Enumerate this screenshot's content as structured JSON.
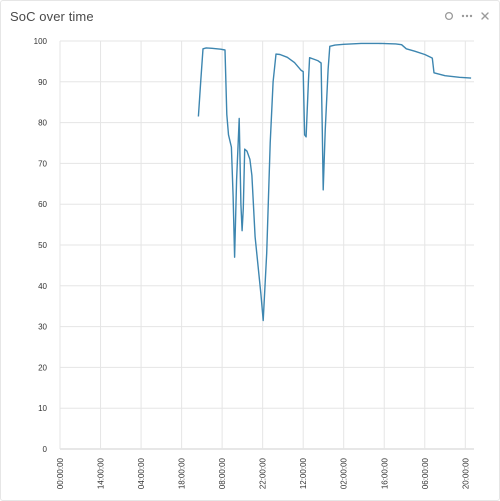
{
  "widget": {
    "title": "SoC over time",
    "controls": [
      {
        "name": "settings-icon"
      },
      {
        "name": "more-icon"
      },
      {
        "name": "close-icon"
      }
    ]
  },
  "chart_data": {
    "type": "line",
    "title": "SoC over time",
    "xlabel": "",
    "ylabel": "",
    "ylim": [
      0,
      100
    ],
    "y_ticks": [
      0,
      10,
      20,
      30,
      40,
      50,
      60,
      70,
      80,
      90,
      100
    ],
    "x_tick_labels": [
      "00:00:00",
      "14:00:00",
      "04:00:00",
      "18:00:00",
      "08:00:00",
      "22:00:00",
      "12:00:00",
      "02:00:00",
      "16:00:00",
      "06:00:00",
      "20:00:00"
    ],
    "x_tick_hours": [
      0,
      14,
      28,
      42,
      56,
      70,
      84,
      98,
      112,
      126,
      140
    ],
    "x_range_hours": [
      0,
      143
    ],
    "grid": true,
    "line_color": "#3d86b0",
    "series": [
      {
        "points": [
          [
            47.8,
            81.5
          ],
          [
            48.6,
            90
          ],
          [
            49.4,
            98.1
          ],
          [
            50.5,
            98.3
          ],
          [
            52.5,
            98.2
          ],
          [
            55.5,
            98.0
          ],
          [
            57.0,
            97.8
          ],
          [
            57.6,
            82
          ],
          [
            58.2,
            77
          ],
          [
            59.2,
            74
          ],
          [
            59.8,
            62
          ],
          [
            60.3,
            47
          ],
          [
            61.0,
            66
          ],
          [
            61.9,
            81
          ],
          [
            62.5,
            60
          ],
          [
            62.9,
            53.5
          ],
          [
            63.3,
            59
          ],
          [
            63.8,
            73.5
          ],
          [
            64.6,
            73
          ],
          [
            65.6,
            71
          ],
          [
            66.3,
            67
          ],
          [
            66.8,
            60
          ],
          [
            67.4,
            52
          ],
          [
            68.4,
            45
          ],
          [
            69.4,
            38
          ],
          [
            70.2,
            31.5
          ],
          [
            71.4,
            48
          ],
          [
            72.6,
            75
          ],
          [
            73.6,
            90
          ],
          [
            74.6,
            96.8
          ],
          [
            76.0,
            96.7
          ],
          [
            78.5,
            96.0
          ],
          [
            81.0,
            94.7
          ],
          [
            83.3,
            92.8
          ],
          [
            84.0,
            92.5
          ],
          [
            84.5,
            77
          ],
          [
            85.0,
            76.5
          ],
          [
            85.8,
            90
          ],
          [
            86.2,
            95.9
          ],
          [
            87.5,
            95.6
          ],
          [
            89.0,
            95.2
          ],
          [
            90.2,
            94.6
          ],
          [
            90.6,
            78
          ],
          [
            90.9,
            63.5
          ],
          [
            91.6,
            78
          ],
          [
            92.6,
            93
          ],
          [
            93.2,
            98.7
          ],
          [
            95.0,
            99.0
          ],
          [
            98.0,
            99.2
          ],
          [
            104.0,
            99.4
          ],
          [
            110.0,
            99.4
          ],
          [
            116.0,
            99.3
          ],
          [
            118.0,
            99.1
          ],
          [
            119.6,
            98.1
          ],
          [
            122.5,
            97.5
          ],
          [
            126.0,
            96.7
          ],
          [
            128.0,
            96.0
          ],
          [
            128.6,
            95.8
          ],
          [
            129.2,
            92.2
          ],
          [
            133.0,
            91.5
          ],
          [
            138.0,
            91.1
          ],
          [
            142.0,
            90.9
          ]
        ]
      }
    ]
  }
}
